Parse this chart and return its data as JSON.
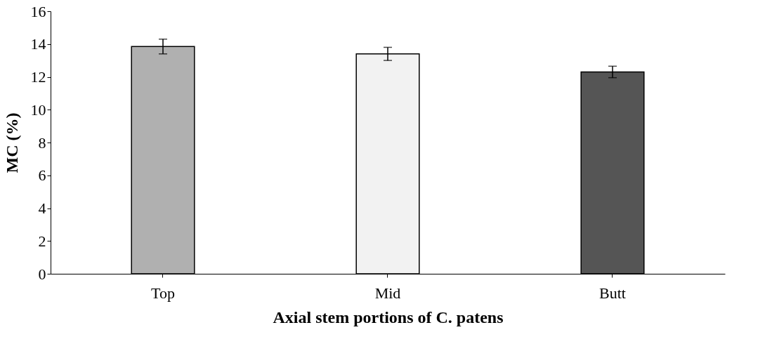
{
  "chart_data": {
    "type": "bar",
    "xlabel": "Axial stem portions of C. patens",
    "ylabel": "MC (%)",
    "categories": [
      "Top",
      "Mid",
      "Butt"
    ],
    "values": [
      13.85,
      13.4,
      12.3
    ],
    "errors": [
      0.45,
      0.4,
      0.35
    ],
    "colors": [
      "#b0b0b0",
      "#f2f2f2",
      "#555555"
    ],
    "ylim": [
      0,
      16
    ],
    "yticks": [
      0,
      2,
      4,
      6,
      8,
      10,
      12,
      14,
      16
    ],
    "grid": false
  }
}
